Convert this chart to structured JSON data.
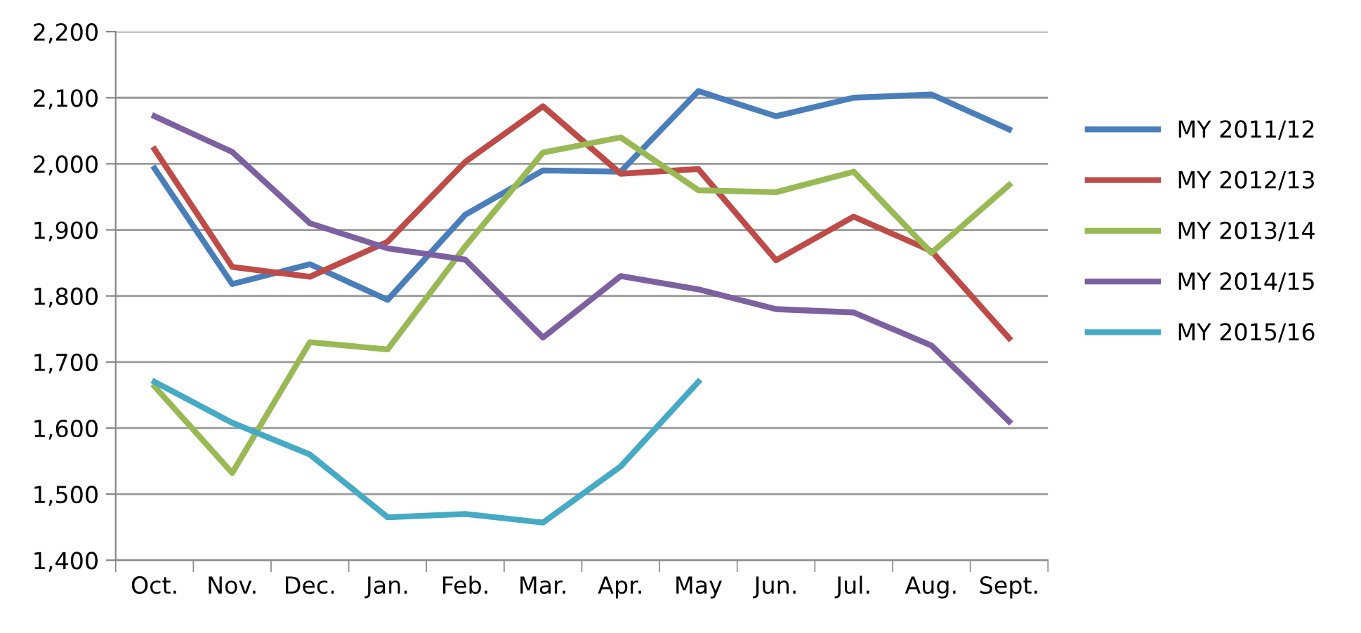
{
  "chart_data": {
    "type": "line",
    "categories": [
      "Oct.",
      "Nov.",
      "Dec.",
      "Jan.",
      "Feb.",
      "Mar.",
      "Apr.",
      "May",
      "Jun.",
      "Jul.",
      "Aug.",
      "Sept."
    ],
    "series": [
      {
        "name": "MY 2011/12",
        "color": "#4a7ebb",
        "values": [
          1993,
          1818,
          1848,
          1794,
          1923,
          1990,
          1988,
          2110,
          2072,
          2100,
          2105,
          2052
        ]
      },
      {
        "name": "MY 2012/13",
        "color": "#be4b48",
        "values": [
          2022,
          1844,
          1829,
          1882,
          2003,
          2087,
          1985,
          1992,
          1854,
          1920,
          1868,
          1736
        ]
      },
      {
        "name": "MY 2013/14",
        "color": "#98b954",
        "values": [
          1663,
          1532,
          1730,
          1719,
          1875,
          2017,
          2040,
          1960,
          1957,
          1988,
          1865,
          1968
        ]
      },
      {
        "name": "MY 2014/15",
        "color": "#7d60a0",
        "values": [
          2072,
          2018,
          1910,
          1872,
          1855,
          1737,
          1830,
          1810,
          1780,
          1775,
          1725,
          1610
        ]
      },
      {
        "name": "MY 2015/16",
        "color": "#46aac5",
        "values": [
          1670,
          1608,
          1560,
          1465,
          1470,
          1457,
          1542,
          1670,
          null,
          null,
          null,
          null
        ]
      }
    ],
    "ylim": [
      1400,
      2200
    ],
    "yticks": [
      {
        "value": 1400,
        "label": "1,400"
      },
      {
        "value": 1500,
        "label": "1,500"
      },
      {
        "value": 1600,
        "label": "1,600"
      },
      {
        "value": 1700,
        "label": "1,700"
      },
      {
        "value": 1800,
        "label": "1,800"
      },
      {
        "value": 1900,
        "label": "1,900"
      },
      {
        "value": 2000,
        "label": "2,000"
      },
      {
        "value": 2100,
        "label": "2,100"
      },
      {
        "value": 2200,
        "label": "2,200"
      }
    ],
    "grid": "y",
    "legend": "right",
    "marker": "none",
    "line_style": "solid"
  }
}
